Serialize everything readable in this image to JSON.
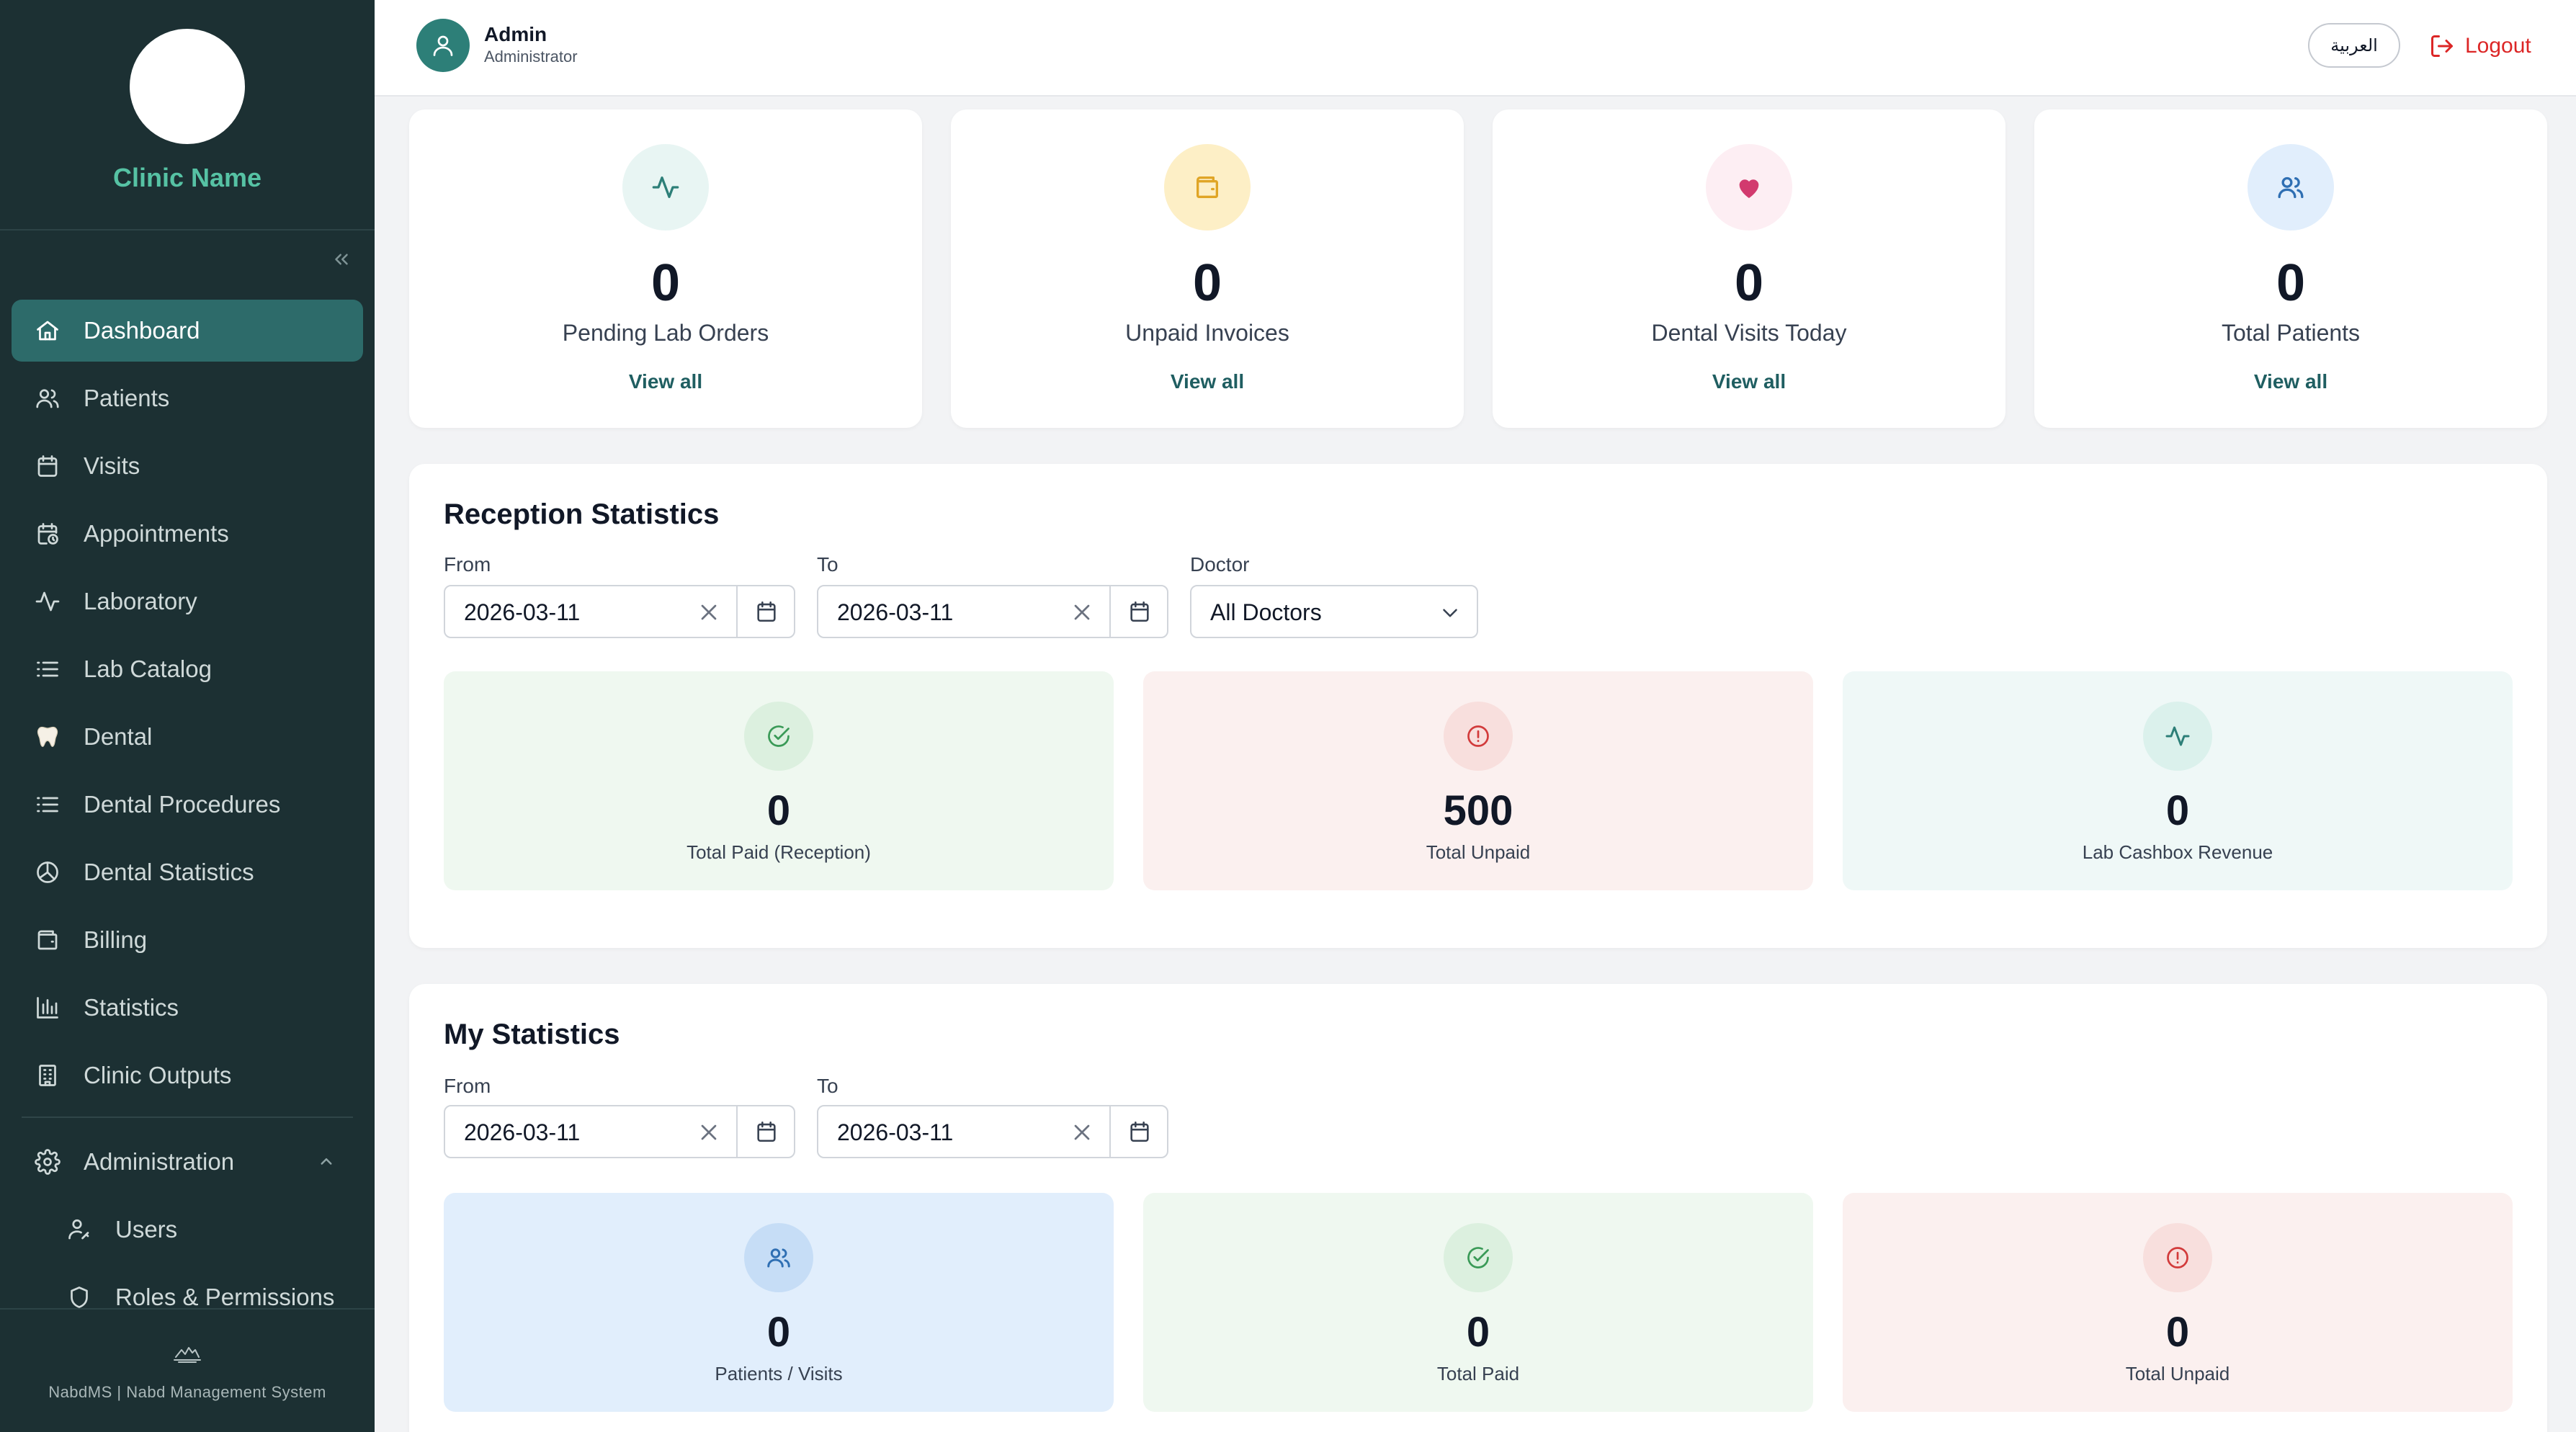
{
  "sidebar": {
    "clinic_name": "Clinic Name",
    "items": [
      {
        "label": "Dashboard",
        "icon": "home-icon"
      },
      {
        "label": "Patients",
        "icon": "users-icon"
      },
      {
        "label": "Visits",
        "icon": "calendar-icon"
      },
      {
        "label": "Appointments",
        "icon": "calendar-clock-icon"
      },
      {
        "label": "Laboratory",
        "icon": "activity-icon"
      },
      {
        "label": "Lab Catalog",
        "icon": "list-icon"
      },
      {
        "label": "Dental",
        "icon": "tooth-icon"
      },
      {
        "label": "Dental Procedures",
        "icon": "list-icon"
      },
      {
        "label": "Dental Statistics",
        "icon": "pie-chart-icon"
      },
      {
        "label": "Billing",
        "icon": "wallet-icon"
      },
      {
        "label": "Statistics",
        "icon": "bar-chart-icon"
      },
      {
        "label": "Clinic Outputs",
        "icon": "building-icon"
      }
    ],
    "admin": {
      "label": "Administration",
      "children": [
        {
          "label": "Users",
          "icon": "user-key-icon"
        },
        {
          "label": "Roles & Permissions",
          "icon": "shield-icon"
        }
      ]
    },
    "footer": "NabdMS | Nabd Management System"
  },
  "header": {
    "user_name": "Admin",
    "user_role": "Administrator",
    "language_button": "العربية",
    "logout_label": "Logout"
  },
  "top_cards": [
    {
      "value": "0",
      "label": "Pending Lab Orders",
      "link": "View all",
      "icon": "activity-icon"
    },
    {
      "value": "0",
      "label": "Unpaid Invoices",
      "link": "View all",
      "icon": "wallet-icon"
    },
    {
      "value": "0",
      "label": "Dental Visits Today",
      "link": "View all",
      "icon": "heart-icon"
    },
    {
      "value": "0",
      "label": "Total Patients",
      "link": "View all",
      "icon": "users-icon"
    }
  ],
  "reception": {
    "title": "Reception Statistics",
    "from_label": "From",
    "from_value": "2026-03-11",
    "to_label": "To",
    "to_value": "2026-03-11",
    "doctor_label": "Doctor",
    "doctor_value": "All Doctors",
    "tiles": [
      {
        "value": "0",
        "label": "Total Paid (Reception)",
        "icon": "check-circle-icon"
      },
      {
        "value": "500",
        "label": "Total Unpaid",
        "icon": "alert-circle-icon"
      },
      {
        "value": "0",
        "label": "Lab Cashbox Revenue",
        "icon": "activity-icon"
      }
    ]
  },
  "my_stats": {
    "title": "My Statistics",
    "from_label": "From",
    "from_value": "2026-03-11",
    "to_label": "To",
    "to_value": "2026-03-11",
    "tiles": [
      {
        "value": "0",
        "label": "Patients / Visits",
        "icon": "users-icon"
      },
      {
        "value": "0",
        "label": "Total Paid",
        "icon": "check-circle-icon"
      },
      {
        "value": "0",
        "label": "Total Unpaid",
        "icon": "alert-circle-icon"
      }
    ]
  },
  "colors": {
    "sidebar_bg": "#1c3033",
    "active_item": "#2d6b6a",
    "brand_text": "#56c2a4",
    "logout": "#dc2626",
    "link": "#1f5e61"
  }
}
